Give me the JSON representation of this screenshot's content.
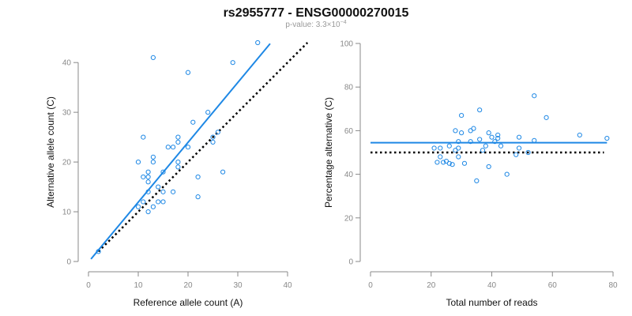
{
  "figure": {
    "title": "rs2955777 - ENSG00000270015",
    "subtitle_prefix": "p-value: 3.3×10",
    "subtitle_exp": "−4"
  },
  "colors": {
    "point": "#1e88e5",
    "fit": "#1e88e5",
    "reference": "#000000"
  },
  "chart_data": [
    {
      "type": "scatter",
      "xlabel": "Reference allele count (A)",
      "ylabel": "Alternative allele count (C)",
      "xlim": [
        0,
        40
      ],
      "ylim": [
        0,
        44
      ],
      "xticks": [
        0,
        10,
        20,
        30,
        40
      ],
      "yticks": [
        0,
        10,
        20,
        30,
        40
      ],
      "points": [
        [
          10,
          11
        ],
        [
          10,
          20
        ],
        [
          11,
          25
        ],
        [
          11,
          17
        ],
        [
          11,
          12
        ],
        [
          12,
          10
        ],
        [
          12,
          14
        ],
        [
          12,
          16
        ],
        [
          12,
          17
        ],
        [
          12,
          18
        ],
        [
          13,
          41
        ],
        [
          13,
          11
        ],
        [
          13,
          20
        ],
        [
          13,
          21
        ],
        [
          14,
          12
        ],
        [
          14,
          15
        ],
        [
          15,
          12
        ],
        [
          15,
          14
        ],
        [
          15,
          18
        ],
        [
          16,
          23
        ],
        [
          17,
          14
        ],
        [
          17,
          23
        ],
        [
          18,
          19
        ],
        [
          18,
          20
        ],
        [
          18,
          24
        ],
        [
          18,
          25
        ],
        [
          20,
          23
        ],
        [
          20,
          38
        ],
        [
          21,
          28
        ],
        [
          22,
          13
        ],
        [
          22,
          17
        ],
        [
          24,
          30
        ],
        [
          25,
          24
        ],
        [
          25,
          25
        ],
        [
          26,
          26
        ],
        [
          27,
          18
        ],
        [
          29,
          40
        ],
        [
          34,
          44
        ],
        [
          2,
          2
        ]
      ],
      "fit_line": {
        "x": [
          0.5,
          36.5
        ],
        "y": [
          0.5,
          43.8
        ]
      },
      "reference_line": {
        "x": [
          2,
          44
        ],
        "y": [
          2,
          44
        ]
      }
    },
    {
      "type": "scatter",
      "xlabel": "Total number of reads",
      "ylabel": "Percentage alternative (C)",
      "xlim": [
        0,
        80
      ],
      "ylim": [
        0,
        100
      ],
      "xticks": [
        0,
        20,
        40,
        60,
        80
      ],
      "yticks": [
        0,
        20,
        40,
        60,
        80,
        100
      ],
      "points": [
        [
          21,
          52
        ],
        [
          22,
          45.5
        ],
        [
          23,
          52
        ],
        [
          23,
          48
        ],
        [
          24,
          45.5
        ],
        [
          25,
          46
        ],
        [
          26,
          53
        ],
        [
          26,
          45
        ],
        [
          27,
          44.5
        ],
        [
          28,
          60
        ],
        [
          28,
          51
        ],
        [
          29,
          48
        ],
        [
          29,
          52
        ],
        [
          29,
          55
        ],
        [
          30,
          67
        ],
        [
          30,
          59
        ],
        [
          31,
          45
        ],
        [
          33,
          55
        ],
        [
          33,
          60
        ],
        [
          34,
          61
        ],
        [
          35,
          37
        ],
        [
          36,
          69.5
        ],
        [
          36,
          56
        ],
        [
          37,
          51
        ],
        [
          38,
          53
        ],
        [
          39,
          59
        ],
        [
          39,
          43.5
        ],
        [
          40,
          57
        ],
        [
          41,
          55
        ],
        [
          42,
          56.5
        ],
        [
          42,
          58
        ],
        [
          43,
          53
        ],
        [
          45,
          40
        ],
        [
          48,
          49
        ],
        [
          49,
          52
        ],
        [
          49,
          57
        ],
        [
          52,
          50
        ],
        [
          54,
          76
        ],
        [
          54,
          55.5
        ],
        [
          58,
          66
        ],
        [
          69,
          58
        ],
        [
          78,
          56.5
        ]
      ],
      "fit_line": {
        "x": [
          0,
          78
        ],
        "y": [
          54.5,
          54.5
        ]
      },
      "reference_line": {
        "x": [
          0,
          77
        ],
        "y": [
          50,
          50
        ]
      }
    }
  ]
}
